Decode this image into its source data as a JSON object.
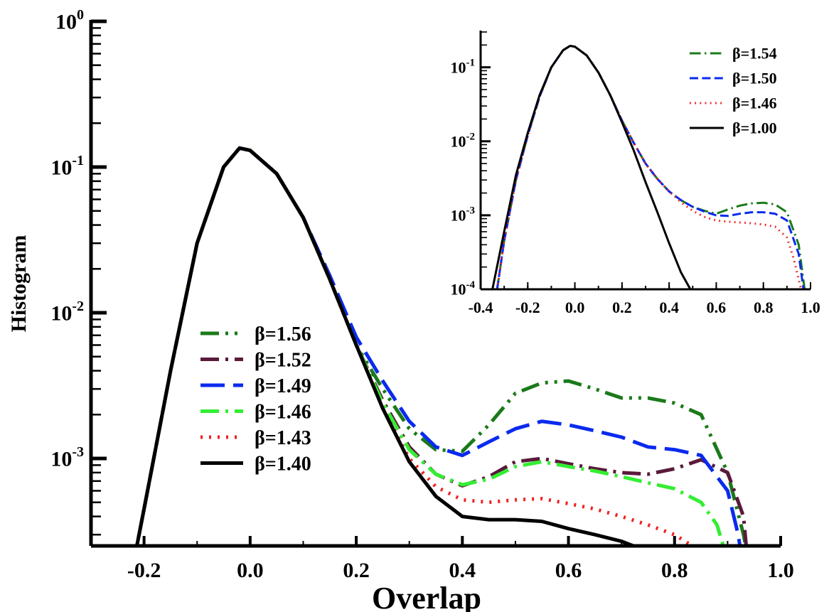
{
  "chart_data": [
    {
      "type": "line",
      "title": "",
      "xlabel": "Overlap",
      "ylabel": "Histogram",
      "yscale": "log",
      "xlim": [
        -0.3,
        1.0
      ],
      "ylim": [
        0.0001,
        1
      ],
      "grid": false,
      "legend_placement": "center-left",
      "x_ticks": [
        "-0.2",
        "0.0",
        "0.2",
        "0.4",
        "0.6",
        "0.8",
        "1.0"
      ],
      "x_tick_values": [
        -0.2,
        0.0,
        0.2,
        0.4,
        0.6,
        0.8,
        1.0
      ],
      "y_tick_labels": [
        {
          "base": "10",
          "exp": "0"
        },
        {
          "base": "10",
          "exp": "-1"
        },
        {
          "base": "10",
          "exp": "-2"
        },
        {
          "base": "10",
          "exp": "-3"
        }
      ],
      "y_tick_values": [
        1,
        0.1,
        0.01,
        0.001
      ],
      "series": [
        {
          "name": "β=1.56",
          "color": "#1a7a1a",
          "dash": "dashdotdot",
          "x": [
            -0.235,
            -0.2,
            -0.15,
            -0.1,
            -0.05,
            -0.02,
            0.0,
            0.05,
            0.1,
            0.15,
            0.2,
            0.25,
            0.3,
            0.35,
            0.4,
            0.45,
            0.5,
            0.55,
            0.6,
            0.65,
            0.7,
            0.75,
            0.8,
            0.85,
            0.9,
            0.93,
            0.955
          ],
          "y": [
            0.0001,
            0.00045,
            0.004,
            0.03,
            0.1,
            0.135,
            0.13,
            0.09,
            0.045,
            0.017,
            0.006,
            0.003,
            0.0016,
            0.00115,
            0.00112,
            0.0017,
            0.0028,
            0.0033,
            0.0034,
            0.003,
            0.0026,
            0.0026,
            0.0024,
            0.002,
            0.0008,
            0.0003,
            0.0001
          ]
        },
        {
          "name": "β=1.52",
          "color": "#5a1a3a",
          "dash": "dashdot",
          "x": [
            -0.235,
            -0.2,
            -0.15,
            -0.1,
            -0.05,
            -0.02,
            0.0,
            0.05,
            0.1,
            0.15,
            0.2,
            0.25,
            0.3,
            0.35,
            0.4,
            0.45,
            0.5,
            0.55,
            0.6,
            0.65,
            0.7,
            0.75,
            0.8,
            0.85,
            0.9,
            0.93,
            0.945
          ],
          "y": [
            0.0001,
            0.00045,
            0.004,
            0.03,
            0.1,
            0.135,
            0.13,
            0.09,
            0.045,
            0.017,
            0.006,
            0.0025,
            0.0012,
            0.00078,
            0.00065,
            0.00075,
            0.00095,
            0.001,
            0.00092,
            0.00085,
            0.0008,
            0.00078,
            0.00085,
            0.00098,
            0.0008,
            0.0004,
            0.0001
          ]
        },
        {
          "name": "β=1.49",
          "color": "#0a2aee",
          "dash": "longdash",
          "x": [
            -0.235,
            -0.2,
            -0.15,
            -0.1,
            -0.05,
            -0.02,
            0.0,
            0.05,
            0.1,
            0.15,
            0.2,
            0.25,
            0.3,
            0.35,
            0.4,
            0.45,
            0.5,
            0.55,
            0.6,
            0.65,
            0.7,
            0.75,
            0.8,
            0.85,
            0.9,
            0.92,
            0.94
          ],
          "y": [
            0.0001,
            0.00045,
            0.004,
            0.03,
            0.1,
            0.135,
            0.13,
            0.09,
            0.045,
            0.018,
            0.0068,
            0.0034,
            0.0018,
            0.0012,
            0.00105,
            0.0013,
            0.0016,
            0.0018,
            0.0017,
            0.00155,
            0.0014,
            0.0012,
            0.00115,
            0.00105,
            0.0006,
            0.0003,
            0.0001
          ]
        },
        {
          "name": "β=1.46",
          "color": "#33ee33",
          "dash": "dashdot",
          "x": [
            -0.235,
            -0.2,
            -0.15,
            -0.1,
            -0.05,
            -0.02,
            0.0,
            0.05,
            0.1,
            0.15,
            0.2,
            0.25,
            0.3,
            0.35,
            0.4,
            0.45,
            0.5,
            0.55,
            0.6,
            0.65,
            0.7,
            0.75,
            0.8,
            0.85,
            0.88,
            0.9,
            0.915
          ],
          "y": [
            0.0001,
            0.00045,
            0.004,
            0.03,
            0.1,
            0.135,
            0.13,
            0.09,
            0.045,
            0.017,
            0.006,
            0.0024,
            0.00115,
            0.00078,
            0.00066,
            0.00072,
            0.00088,
            0.00095,
            0.00088,
            0.00082,
            0.00075,
            0.00068,
            0.00062,
            0.0005,
            0.00035,
            0.0002,
            0.0001
          ]
        },
        {
          "name": "β=1.43",
          "color": "#ee2222",
          "dash": "dotted",
          "x": [
            -0.235,
            -0.2,
            -0.15,
            -0.1,
            -0.05,
            -0.02,
            0.0,
            0.05,
            0.1,
            0.15,
            0.2,
            0.25,
            0.3,
            0.35,
            0.4,
            0.45,
            0.5,
            0.55,
            0.6,
            0.65,
            0.7,
            0.75,
            0.8,
            0.85,
            0.88,
            0.9
          ],
          "y": [
            0.0001,
            0.00045,
            0.004,
            0.03,
            0.1,
            0.135,
            0.13,
            0.09,
            0.045,
            0.017,
            0.006,
            0.0022,
            0.001,
            0.00064,
            0.00052,
            0.0005,
            0.00052,
            0.00053,
            0.00049,
            0.00045,
            0.0004,
            0.00035,
            0.0003,
            0.00023,
            0.00015,
            0.0001
          ]
        },
        {
          "name": "β=1.40",
          "color": "#000000",
          "dash": "solid",
          "x": [
            -0.235,
            -0.2,
            -0.15,
            -0.1,
            -0.05,
            -0.02,
            0.0,
            0.05,
            0.1,
            0.15,
            0.2,
            0.25,
            0.3,
            0.35,
            0.4,
            0.45,
            0.5,
            0.55,
            0.6,
            0.65,
            0.7,
            0.75,
            0.8,
            0.83,
            0.845
          ],
          "y": [
            0.0001,
            0.00045,
            0.004,
            0.03,
            0.1,
            0.135,
            0.13,
            0.09,
            0.045,
            0.017,
            0.006,
            0.0022,
            0.00095,
            0.00055,
            0.0004,
            0.00038,
            0.00038,
            0.00037,
            0.00033,
            0.0003,
            0.00027,
            0.00023,
            0.00018,
            0.00013,
            0.0001
          ]
        }
      ]
    },
    {
      "type": "line",
      "title": "",
      "xlabel": "",
      "ylabel": "",
      "yscale": "log",
      "xlim": [
        -0.4,
        1.0
      ],
      "ylim": [
        0.0001,
        0.3
      ],
      "grid": false,
      "legend_placement": "top-right",
      "x_ticks": [
        "-0.4",
        "-0.2",
        "0.0",
        "0.2",
        "0.4",
        "0.6",
        "0.8",
        "1.0"
      ],
      "x_tick_values": [
        -0.4,
        -0.2,
        0.0,
        0.2,
        0.4,
        0.6,
        0.8,
        1.0
      ],
      "y_tick_labels": [
        {
          "base": "10",
          "exp": "-1"
        },
        {
          "base": "10",
          "exp": "-2"
        },
        {
          "base": "10",
          "exp": "-3"
        },
        {
          "base": "10",
          "exp": "-4"
        }
      ],
      "y_tick_values": [
        0.1,
        0.01,
        0.001,
        0.0001
      ],
      "series": [
        {
          "name": "β=1.54",
          "color": "#1a7a1a",
          "dash": "dashdot",
          "x": [
            -0.33,
            -0.3,
            -0.25,
            -0.2,
            -0.15,
            -0.1,
            -0.05,
            -0.02,
            0.0,
            0.05,
            0.1,
            0.15,
            0.2,
            0.25,
            0.3,
            0.35,
            0.4,
            0.45,
            0.5,
            0.55,
            0.6,
            0.65,
            0.7,
            0.75,
            0.8,
            0.85,
            0.9,
            0.95,
            0.975
          ],
          "y": [
            0.0001,
            0.00045,
            0.003,
            0.012,
            0.04,
            0.1,
            0.17,
            0.195,
            0.19,
            0.145,
            0.085,
            0.042,
            0.019,
            0.0095,
            0.005,
            0.0031,
            0.0021,
            0.0016,
            0.0013,
            0.00115,
            0.00105,
            0.0012,
            0.00135,
            0.00145,
            0.00148,
            0.0014,
            0.0011,
            0.0004,
            0.0001
          ]
        },
        {
          "name": "β=1.50",
          "color": "#0a2aee",
          "dash": "dashed",
          "x": [
            -0.33,
            -0.3,
            -0.25,
            -0.2,
            -0.15,
            -0.1,
            -0.05,
            -0.02,
            0.0,
            0.05,
            0.1,
            0.15,
            0.2,
            0.25,
            0.3,
            0.35,
            0.4,
            0.45,
            0.5,
            0.55,
            0.6,
            0.65,
            0.7,
            0.75,
            0.8,
            0.85,
            0.9,
            0.95,
            0.97
          ],
          "y": [
            0.0001,
            0.00045,
            0.003,
            0.012,
            0.04,
            0.1,
            0.17,
            0.195,
            0.19,
            0.145,
            0.085,
            0.042,
            0.019,
            0.0095,
            0.005,
            0.0031,
            0.0021,
            0.0016,
            0.0013,
            0.00112,
            0.001,
            0.00098,
            0.00105,
            0.0011,
            0.0011,
            0.00105,
            0.00085,
            0.0003,
            0.0001
          ]
        },
        {
          "name": "β=1.46",
          "color": "#ee2222",
          "dash": "dotted",
          "x": [
            -0.33,
            -0.3,
            -0.25,
            -0.2,
            -0.15,
            -0.1,
            -0.05,
            -0.02,
            0.0,
            0.05,
            0.1,
            0.15,
            0.2,
            0.25,
            0.3,
            0.35,
            0.4,
            0.45,
            0.5,
            0.55,
            0.6,
            0.65,
            0.7,
            0.75,
            0.8,
            0.85,
            0.9,
            0.93,
            0.96
          ],
          "y": [
            0.0001,
            0.00045,
            0.003,
            0.012,
            0.04,
            0.1,
            0.17,
            0.195,
            0.19,
            0.145,
            0.085,
            0.042,
            0.019,
            0.0095,
            0.005,
            0.0031,
            0.0021,
            0.0015,
            0.00115,
            0.00095,
            0.00085,
            0.00082,
            0.0008,
            0.00078,
            0.00075,
            0.0007,
            0.0005,
            0.00025,
            0.0001
          ]
        },
        {
          "name": "β=1.00",
          "color": "#000000",
          "dash": "solid",
          "x": [
            -0.35,
            -0.3,
            -0.25,
            -0.2,
            -0.15,
            -0.1,
            -0.05,
            -0.02,
            0.0,
            0.05,
            0.1,
            0.15,
            0.2,
            0.25,
            0.3,
            0.35,
            0.4,
            0.45,
            0.49
          ],
          "y": [
            0.0001,
            0.0006,
            0.0035,
            0.013,
            0.042,
            0.1,
            0.17,
            0.195,
            0.19,
            0.145,
            0.085,
            0.042,
            0.018,
            0.0075,
            0.0028,
            0.0011,
            0.00042,
            0.00017,
            0.0001
          ]
        }
      ]
    }
  ]
}
